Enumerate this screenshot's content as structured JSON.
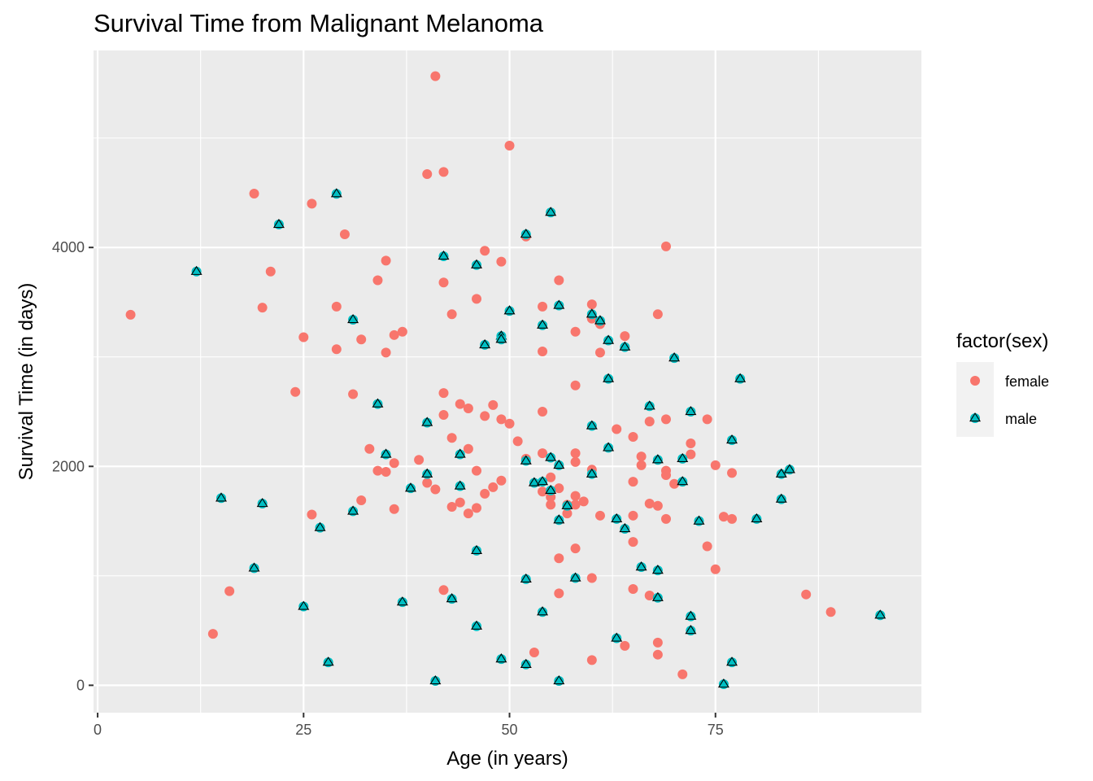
{
  "chart_data": {
    "type": "scatter",
    "title": "Survival Time from Malignant Melanoma",
    "xlabel": "Age (in years)",
    "ylabel": "Survival Time (in days)",
    "xlim": [
      -0.5,
      100
    ],
    "ylim": [
      -250,
      5800
    ],
    "x_ticks": [
      0,
      25,
      50,
      75
    ],
    "y_ticks": [
      0,
      2000,
      4000
    ],
    "grid": true,
    "legend": {
      "title": "factor(sex)",
      "position": "right"
    },
    "series": [
      {
        "name": "female",
        "color": "#F8766D",
        "marker": "circle",
        "points": [
          [
            4,
            3385
          ],
          [
            14,
            470
          ],
          [
            16,
            860
          ],
          [
            19,
            4492
          ],
          [
            20,
            3450
          ],
          [
            21,
            3780
          ],
          [
            24,
            2680
          ],
          [
            25,
            3180
          ],
          [
            26,
            4400
          ],
          [
            26,
            1560
          ],
          [
            29,
            3460
          ],
          [
            29,
            3070
          ],
          [
            30,
            4120
          ],
          [
            31,
            2660
          ],
          [
            32,
            3160
          ],
          [
            32,
            1690
          ],
          [
            33,
            2160
          ],
          [
            34,
            3700
          ],
          [
            34,
            1960
          ],
          [
            35,
            3880
          ],
          [
            35,
            3040
          ],
          [
            35,
            1950
          ],
          [
            36,
            3200
          ],
          [
            36,
            2030
          ],
          [
            36,
            1610
          ],
          [
            37,
            3230
          ],
          [
            39,
            2060
          ],
          [
            40,
            4670
          ],
          [
            40,
            1850
          ],
          [
            41,
            5565
          ],
          [
            41,
            1790
          ],
          [
            42,
            4690
          ],
          [
            42,
            3680
          ],
          [
            42,
            2670
          ],
          [
            42,
            2470
          ],
          [
            42,
            870
          ],
          [
            43,
            3390
          ],
          [
            43,
            2260
          ],
          [
            43,
            1630
          ],
          [
            44,
            2570
          ],
          [
            44,
            1670
          ],
          [
            45,
            2530
          ],
          [
            45,
            2160
          ],
          [
            45,
            1570
          ],
          [
            46,
            3530
          ],
          [
            46,
            1960
          ],
          [
            46,
            1620
          ],
          [
            47,
            3970
          ],
          [
            47,
            2460
          ],
          [
            47,
            1750
          ],
          [
            48,
            2560
          ],
          [
            48,
            1810
          ],
          [
            49,
            3870
          ],
          [
            49,
            2430
          ],
          [
            49,
            1870
          ],
          [
            50,
            4930
          ],
          [
            50,
            2390
          ],
          [
            51,
            2230
          ],
          [
            52,
            4100
          ],
          [
            52,
            2070
          ],
          [
            53,
            300
          ],
          [
            54,
            3460
          ],
          [
            54,
            3050
          ],
          [
            54,
            2500
          ],
          [
            54,
            2120
          ],
          [
            54,
            1770
          ],
          [
            55,
            1900
          ],
          [
            55,
            1720
          ],
          [
            55,
            1650
          ],
          [
            56,
            3700
          ],
          [
            56,
            1800
          ],
          [
            56,
            1160
          ],
          [
            56,
            840
          ],
          [
            57,
            1650
          ],
          [
            57,
            1570
          ],
          [
            58,
            3230
          ],
          [
            58,
            2740
          ],
          [
            58,
            2120
          ],
          [
            58,
            2040
          ],
          [
            58,
            1730
          ],
          [
            58,
            1650
          ],
          [
            58,
            1250
          ],
          [
            59,
            1680
          ],
          [
            60,
            3480
          ],
          [
            60,
            3350
          ],
          [
            60,
            1970
          ],
          [
            60,
            980
          ],
          [
            60,
            230
          ],
          [
            61,
            3300
          ],
          [
            61,
            3040
          ],
          [
            61,
            1550
          ],
          [
            63,
            2340
          ],
          [
            64,
            3190
          ],
          [
            64,
            360
          ],
          [
            65,
            2270
          ],
          [
            65,
            1860
          ],
          [
            65,
            1550
          ],
          [
            65,
            1310
          ],
          [
            65,
            880
          ],
          [
            66,
            2090
          ],
          [
            66,
            2010
          ],
          [
            67,
            2410
          ],
          [
            67,
            1660
          ],
          [
            67,
            820
          ],
          [
            68,
            3390
          ],
          [
            68,
            1640
          ],
          [
            68,
            390
          ],
          [
            68,
            280
          ],
          [
            69,
            4010
          ],
          [
            69,
            2430
          ],
          [
            69,
            1960
          ],
          [
            69,
            1920
          ],
          [
            69,
            1520
          ],
          [
            70,
            1840
          ],
          [
            71,
            100
          ],
          [
            72,
            2210
          ],
          [
            72,
            2110
          ],
          [
            74,
            2430
          ],
          [
            74,
            1270
          ],
          [
            75,
            2010
          ],
          [
            75,
            1060
          ],
          [
            76,
            1540
          ],
          [
            77,
            1940
          ],
          [
            77,
            1520
          ],
          [
            86,
            830
          ],
          [
            89,
            670
          ]
        ]
      },
      {
        "name": "male",
        "color": "#00BFC4",
        "marker": "triangle",
        "points": [
          [
            12,
            3780
          ],
          [
            15,
            1710
          ],
          [
            19,
            1070
          ],
          [
            20,
            1660
          ],
          [
            22,
            4210
          ],
          [
            25,
            720
          ],
          [
            27,
            1440
          ],
          [
            28,
            210
          ],
          [
            29,
            4490
          ],
          [
            31,
            3340
          ],
          [
            31,
            1590
          ],
          [
            34,
            2570
          ],
          [
            35,
            2110
          ],
          [
            37,
            760
          ],
          [
            38,
            1800
          ],
          [
            40,
            2400
          ],
          [
            40,
            1930
          ],
          [
            41,
            40
          ],
          [
            42,
            3920
          ],
          [
            43,
            790
          ],
          [
            44,
            2110
          ],
          [
            44,
            1820
          ],
          [
            46,
            3840
          ],
          [
            46,
            1230
          ],
          [
            46,
            540
          ],
          [
            47,
            3110
          ],
          [
            49,
            3190
          ],
          [
            49,
            3160
          ],
          [
            49,
            240
          ],
          [
            50,
            3420
          ],
          [
            52,
            4120
          ],
          [
            52,
            2050
          ],
          [
            52,
            970
          ],
          [
            52,
            190
          ],
          [
            53,
            1850
          ],
          [
            54,
            3290
          ],
          [
            54,
            1860
          ],
          [
            54,
            670
          ],
          [
            55,
            4320
          ],
          [
            55,
            2080
          ],
          [
            55,
            1780
          ],
          [
            56,
            3470
          ],
          [
            56,
            2010
          ],
          [
            56,
            1510
          ],
          [
            56,
            40
          ],
          [
            57,
            1640
          ],
          [
            58,
            980
          ],
          [
            60,
            3390
          ],
          [
            60,
            2370
          ],
          [
            60,
            1930
          ],
          [
            61,
            3330
          ],
          [
            62,
            3150
          ],
          [
            62,
            2800
          ],
          [
            62,
            2170
          ],
          [
            63,
            1520
          ],
          [
            63,
            430
          ],
          [
            64,
            3090
          ],
          [
            64,
            1430
          ],
          [
            66,
            1080
          ],
          [
            67,
            2550
          ],
          [
            68,
            2060
          ],
          [
            68,
            1050
          ],
          [
            68,
            800
          ],
          [
            70,
            2990
          ],
          [
            71,
            2070
          ],
          [
            71,
            1860
          ],
          [
            72,
            2500
          ],
          [
            72,
            630
          ],
          [
            72,
            500
          ],
          [
            73,
            1500
          ],
          [
            76,
            10
          ],
          [
            77,
            2240
          ],
          [
            77,
            210
          ],
          [
            78,
            2800
          ],
          [
            80,
            1520
          ],
          [
            83,
            1930
          ],
          [
            83,
            1700
          ],
          [
            84,
            1970
          ],
          [
            95,
            640
          ]
        ]
      }
    ]
  }
}
